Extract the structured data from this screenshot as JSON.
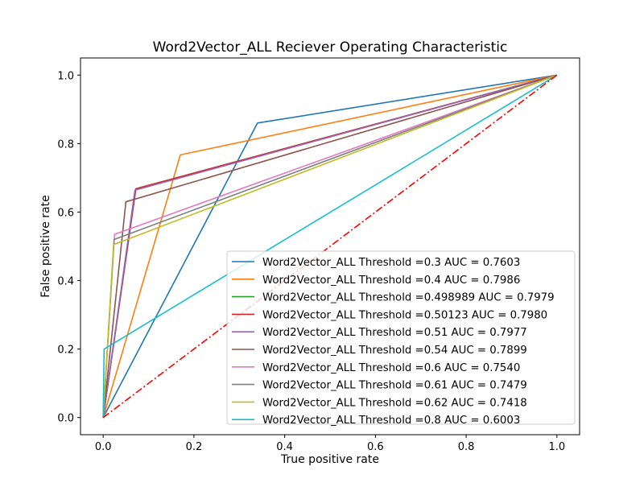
{
  "chart_data": {
    "type": "line",
    "title": "Word2Vector_ALL Reciever Operating Characteristic",
    "xlabel": "True positive rate",
    "ylabel": "False positive rate",
    "xlim": [
      -0.05,
      1.05
    ],
    "ylim": [
      -0.05,
      1.05
    ],
    "xticks": [
      "0.0",
      "0.2",
      "0.4",
      "0.6",
      "0.8",
      "1.0"
    ],
    "yticks": [
      "0.0",
      "0.2",
      "0.4",
      "0.6",
      "0.8",
      "1.0"
    ],
    "grid": false,
    "legend_position": "lower-right",
    "series": [
      {
        "name": "Word2Vector_ALL Threshold =0.3 AUC = 0.7603",
        "color": "#1f77b4",
        "x": [
          0,
          0.34,
          1
        ],
        "y": [
          0,
          0.86,
          1
        ]
      },
      {
        "name": "Word2Vector_ALL Threshold =0.4 AUC = 0.7986",
        "color": "#ff7f0e",
        "x": [
          0,
          0.17,
          1
        ],
        "y": [
          0,
          0.767,
          1
        ]
      },
      {
        "name": "Word2Vector_ALL Threshold =0.498989 AUC = 0.7979",
        "color": "#2ca02c",
        "x": [
          0,
          0.072,
          1
        ],
        "y": [
          0,
          0.668,
          1
        ]
      },
      {
        "name": "Word2Vector_ALL Threshold =0.50123 AUC = 0.7980",
        "color": "#d62728",
        "x": [
          0,
          0.072,
          1
        ],
        "y": [
          0,
          0.668,
          1
        ]
      },
      {
        "name": "Word2Vector_ALL Threshold =0.51 AUC = 0.7977",
        "color": "#9467bd",
        "x": [
          0,
          0.07,
          1
        ],
        "y": [
          0,
          0.664,
          1
        ]
      },
      {
        "name": "Word2Vector_ALL Threshold =0.54 AUC = 0.7899",
        "color": "#8c564b",
        "x": [
          0,
          0.05,
          1
        ],
        "y": [
          0,
          0.63,
          1
        ]
      },
      {
        "name": "Word2Vector_ALL Threshold =0.6 AUC = 0.7540",
        "color": "#e377c2",
        "x": [
          0,
          0.025,
          1
        ],
        "y": [
          0,
          0.535,
          1
        ]
      },
      {
        "name": "Word2Vector_ALL Threshold =0.61 AUC = 0.7479",
        "color": "#7f7f7f",
        "x": [
          0,
          0.024,
          1
        ],
        "y": [
          0,
          0.52,
          1
        ]
      },
      {
        "name": "Word2Vector_ALL Threshold =0.62 AUC = 0.7418",
        "color": "#bcbd22",
        "x": [
          0,
          0.023,
          1
        ],
        "y": [
          0,
          0.505,
          1
        ]
      },
      {
        "name": "Word2Vector_ALL Threshold =0.8 AUC = 0.6003",
        "color": "#17becf",
        "x": [
          0,
          0.002,
          1
        ],
        "y": [
          0,
          0.2,
          1
        ]
      }
    ],
    "reference_line": {
      "x": [
        0,
        1
      ],
      "y": [
        0,
        1
      ],
      "color": "#ff0000",
      "style": "dash-dot"
    }
  }
}
